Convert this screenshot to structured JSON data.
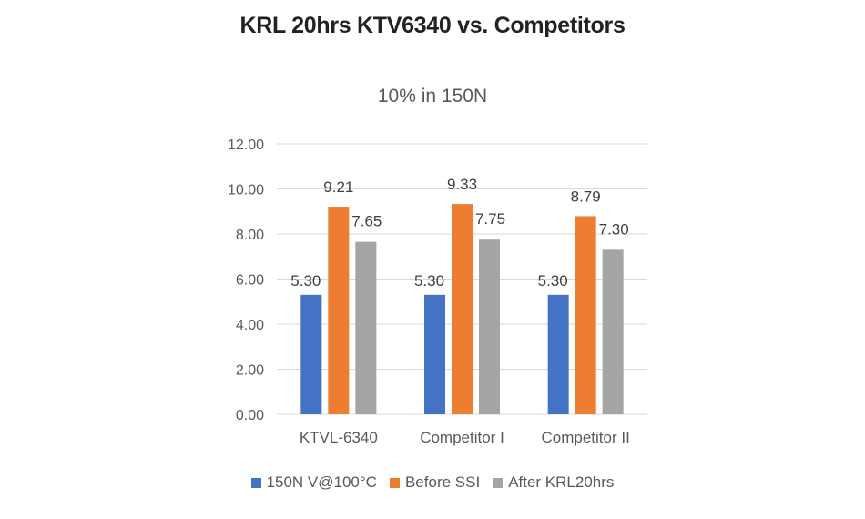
{
  "title": "KRL 20hrs KTV6340 vs. Competitors",
  "chart_data": {
    "type": "bar",
    "title": "10% in 150N",
    "categories": [
      "KTVL-6340",
      "Competitor I",
      "Competitor II"
    ],
    "series": [
      {
        "name": "150N V@100°C",
        "values": [
          5.3,
          5.3,
          5.3
        ],
        "labels": [
          "5.30",
          "5.30",
          "5.30"
        ],
        "color": "#4472C4"
      },
      {
        "name": "Before SSI",
        "values": [
          9.21,
          9.33,
          8.79
        ],
        "labels": [
          "9.21",
          "9.33",
          "8.79"
        ],
        "color": "#ED7D31"
      },
      {
        "name": "After KRL20hrs",
        "values": [
          7.65,
          7.75,
          7.3
        ],
        "labels": [
          "7.65",
          "7.75",
          "7.30"
        ],
        "color": "#A5A5A5"
      }
    ],
    "yticks": [
      "0.00",
      "2.00",
      "4.00",
      "6.00",
      "8.00",
      "10.00",
      "12.00"
    ],
    "ylim": [
      0,
      12
    ],
    "grid": true,
    "legend_position": "bottom",
    "gridline_color": "#D9D9D9"
  }
}
